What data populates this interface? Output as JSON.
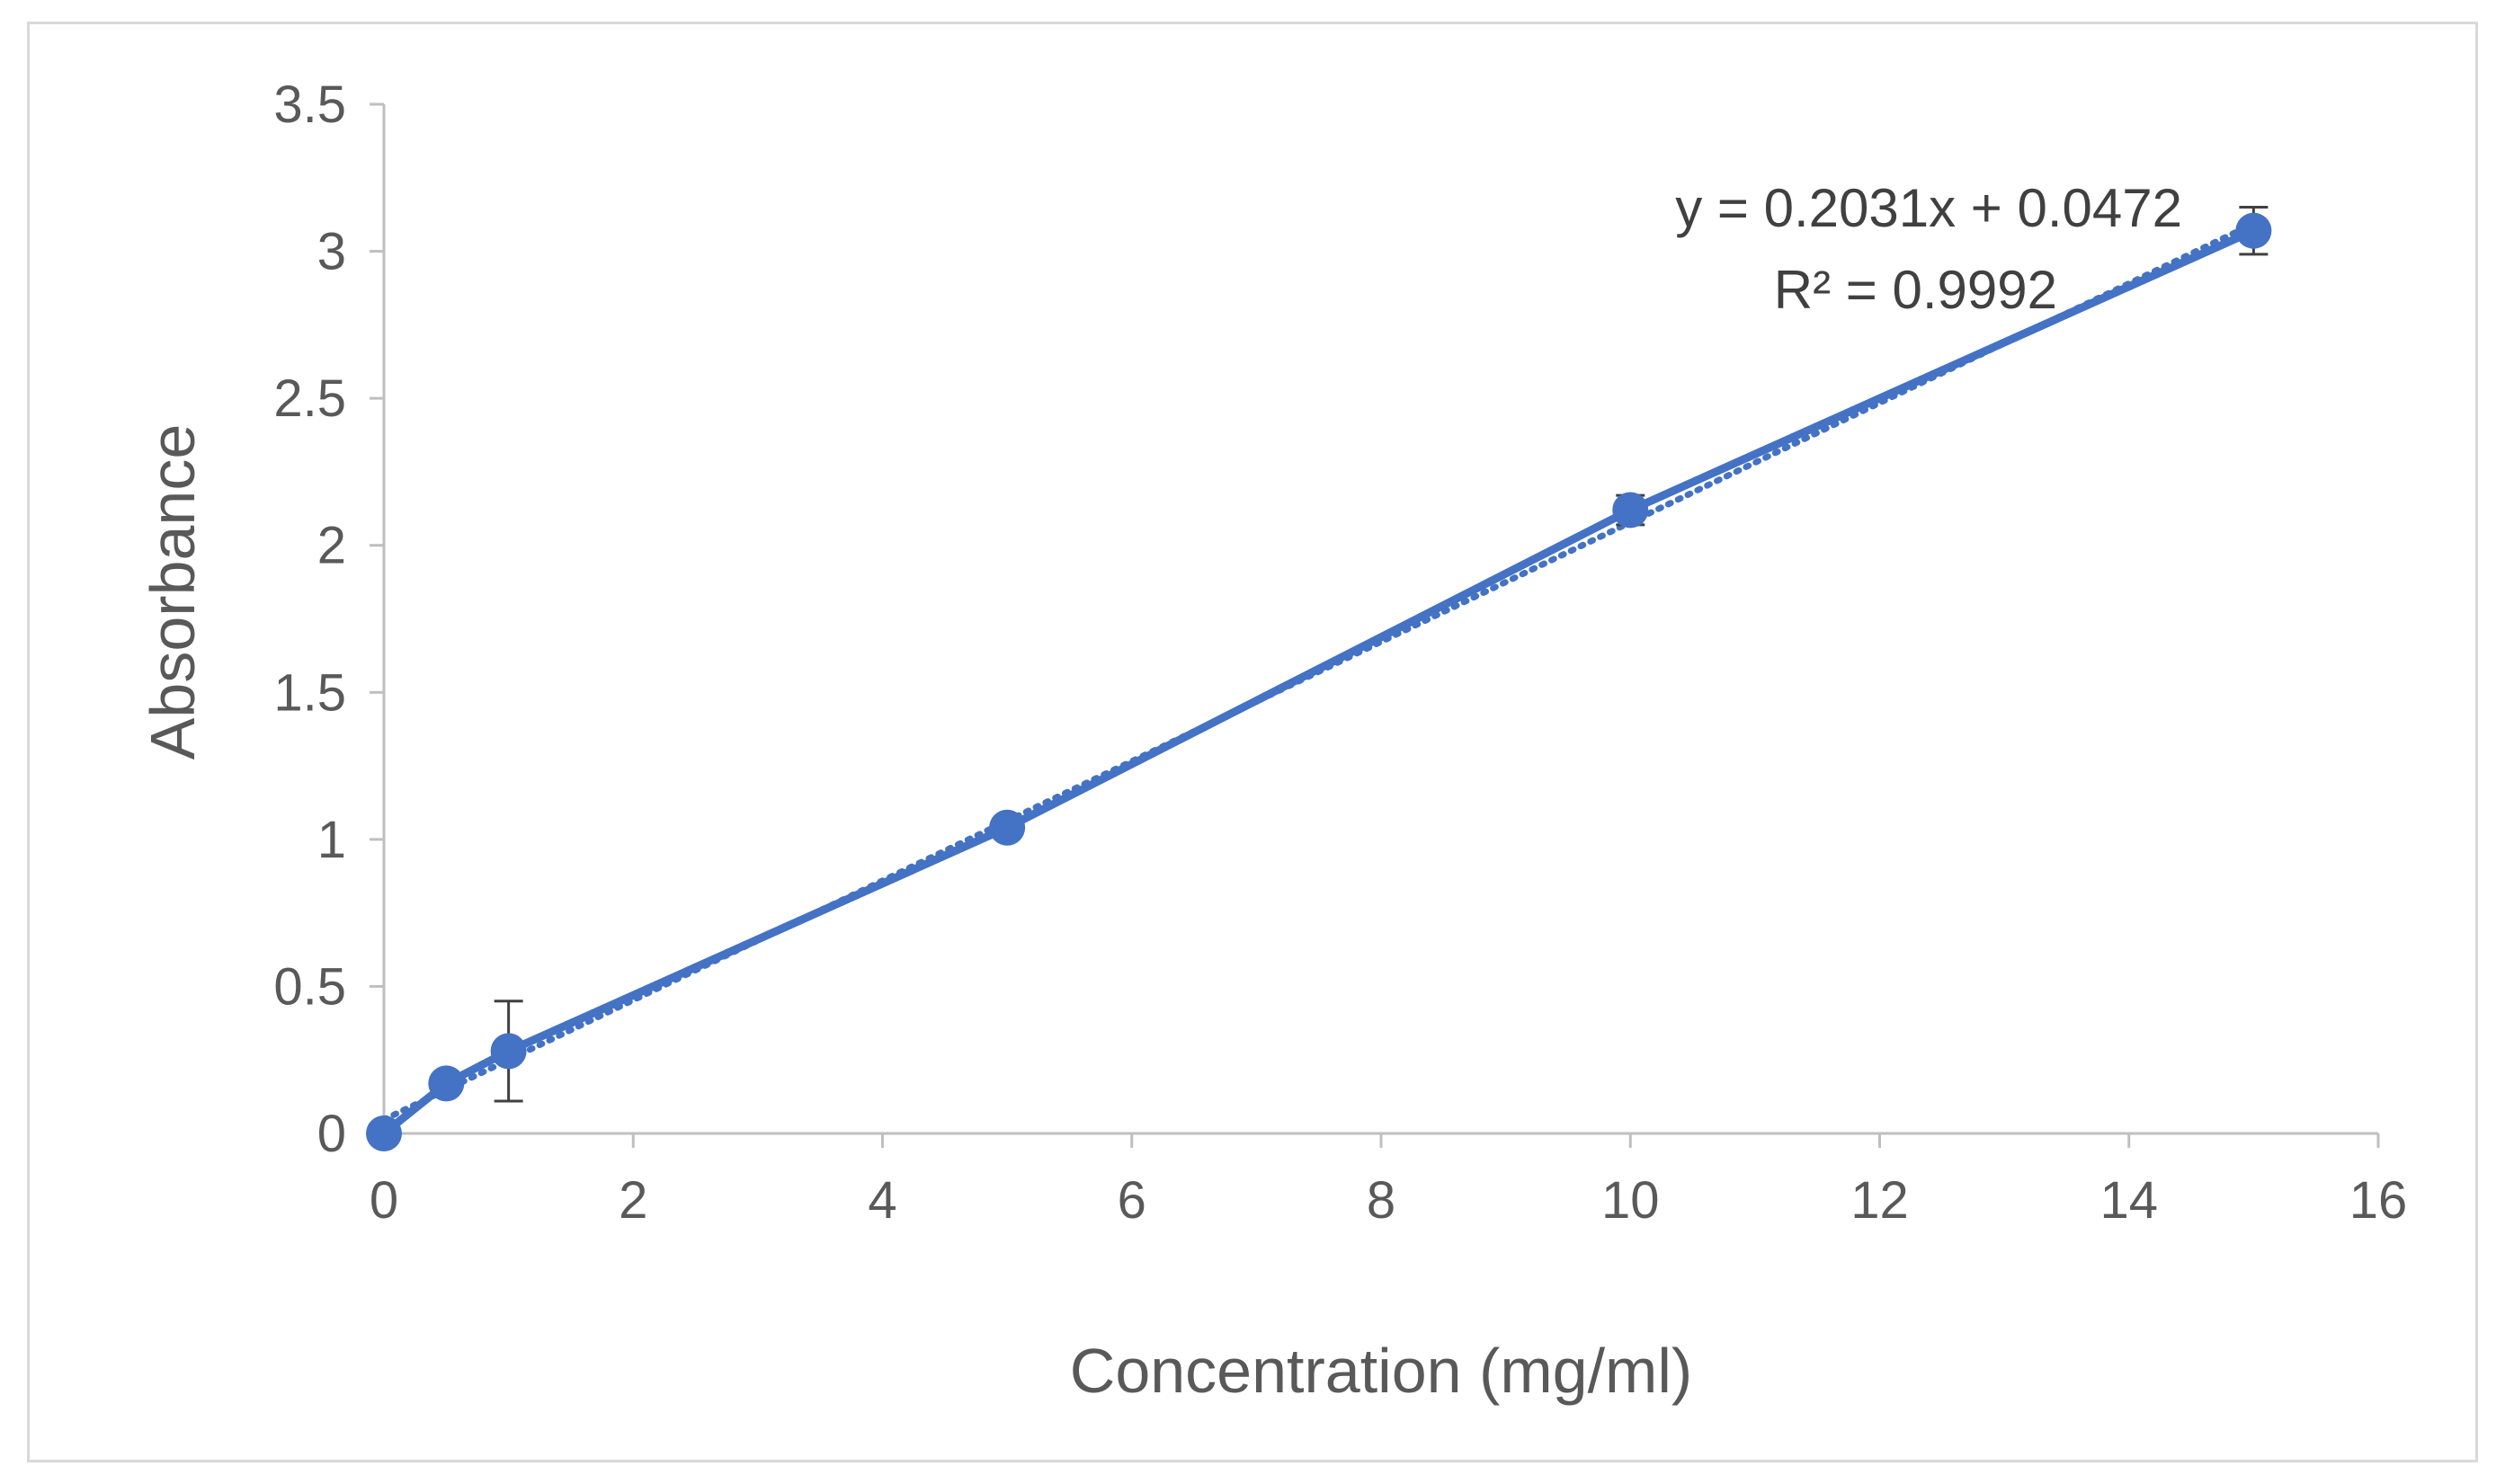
{
  "chart_data": {
    "type": "scatter",
    "title": "",
    "xlabel": "Concentration (mg/ml)",
    "ylabel": "Absorbance",
    "xlim": [
      0,
      16
    ],
    "ylim": [
      0,
      3.5
    ],
    "x_ticks": [
      "0",
      "2",
      "4",
      "6",
      "8",
      "10",
      "12",
      "14",
      "16"
    ],
    "y_ticks": [
      "0",
      "0.5",
      "1",
      "1.5",
      "2",
      "2.5",
      "3",
      "3.5"
    ],
    "grid": false,
    "series": [
      {
        "name": "Absorbance",
        "color": "#4472c4",
        "marker": "circle",
        "line": "solid",
        "x": [
          0,
          0.5,
          1,
          5,
          10,
          15
        ],
        "y": [
          0.0,
          0.17,
          0.28,
          1.04,
          2.12,
          3.07
        ],
        "error": [
          0.0,
          0.0,
          0.17,
          0.0,
          0.05,
          0.08
        ]
      }
    ],
    "trendline": {
      "type": "linear",
      "style": "dotted",
      "color": "#4472c4",
      "slope": 0.2031,
      "intercept": 0.0472,
      "equation": "y = 0.2031x + 0.0472",
      "r_squared": "R² = 0.9992"
    }
  }
}
